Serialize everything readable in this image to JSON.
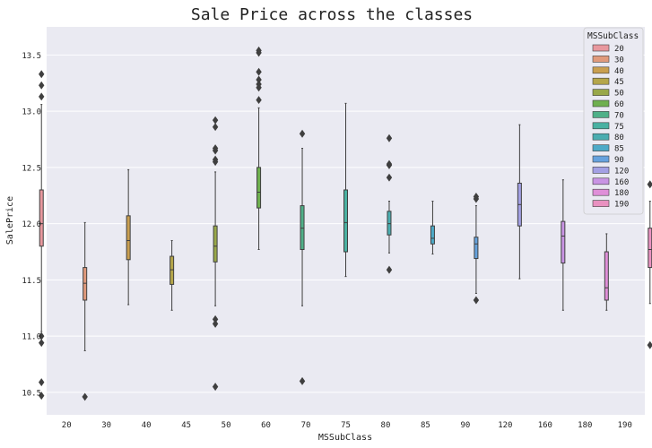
{
  "chart_data": {
    "type": "box",
    "title": "Sale Price across the classes",
    "xlabel": "MSSubClass",
    "ylabel": "SalePrice",
    "ylim": [
      10.3,
      13.75
    ],
    "yticks": [
      10.5,
      11.0,
      11.5,
      12.0,
      12.5,
      13.0,
      13.5
    ],
    "ytick_labels": [
      "10.5",
      "11.0",
      "11.5",
      "12.0",
      "12.5",
      "13.0",
      "13.5"
    ],
    "categories": [
      "20",
      "30",
      "40",
      "45",
      "50",
      "60",
      "70",
      "75",
      "80",
      "85",
      "90",
      "120",
      "160",
      "180",
      "190"
    ],
    "grid": true,
    "legend": {
      "title": "MSSubClass",
      "placement": "top-right",
      "entries": [
        "20",
        "30",
        "40",
        "45",
        "50",
        "60",
        "70",
        "75",
        "80",
        "85",
        "90",
        "120",
        "160",
        "180",
        "190"
      ]
    },
    "series": [
      {
        "name": "20",
        "color": "#e8989e",
        "q1": 11.8,
        "median": 12.0,
        "q3": 12.3,
        "whisker_low": 11.04,
        "whisker_high": 13.06,
        "outliers": [
          13.33,
          13.23,
          13.13,
          11.0,
          10.94,
          10.59,
          10.47
        ]
      },
      {
        "name": "30",
        "color": "#e09a7c",
        "q1": 11.32,
        "median": 11.47,
        "q3": 11.61,
        "whisker_low": 10.87,
        "whisker_high": 12.01,
        "outliers": [
          10.46
        ]
      },
      {
        "name": "40",
        "color": "#c99f50",
        "q1": 11.68,
        "median": 11.85,
        "q3": 12.07,
        "whisker_low": 11.28,
        "whisker_high": 12.48,
        "outliers": []
      },
      {
        "name": "45",
        "color": "#b5a64a",
        "q1": 11.46,
        "median": 11.59,
        "q3": 11.71,
        "whisker_low": 11.23,
        "whisker_high": 11.85,
        "outliers": []
      },
      {
        "name": "50",
        "color": "#99a84a",
        "q1": 11.66,
        "median": 11.8,
        "q3": 11.98,
        "whisker_low": 11.27,
        "whisker_high": 12.46,
        "outliers": [
          12.92,
          12.86,
          12.67,
          12.65,
          12.57,
          12.55,
          11.15,
          11.11,
          10.55
        ]
      },
      {
        "name": "60",
        "color": "#6fb04f",
        "q1": 12.14,
        "median": 12.28,
        "q3": 12.5,
        "whisker_low": 11.77,
        "whisker_high": 13.03,
        "outliers": [
          13.54,
          13.52,
          13.35,
          13.28,
          13.24,
          13.21,
          13.1
        ]
      },
      {
        "name": "70",
        "color": "#4fb088",
        "q1": 11.77,
        "median": 11.96,
        "q3": 12.16,
        "whisker_low": 11.27,
        "whisker_high": 12.67,
        "outliers": [
          12.8,
          10.6
        ]
      },
      {
        "name": "75",
        "color": "#4ab1a2",
        "q1": 11.75,
        "median": 12.01,
        "q3": 12.3,
        "whisker_low": 11.53,
        "whisker_high": 13.07,
        "outliers": []
      },
      {
        "name": "80",
        "color": "#4badb0",
        "q1": 11.9,
        "median": 12.0,
        "q3": 12.11,
        "whisker_low": 11.74,
        "whisker_high": 12.2,
        "outliers": [
          12.76,
          12.53,
          12.52,
          12.41,
          11.59
        ]
      },
      {
        "name": "85",
        "color": "#4eaac7",
        "q1": 11.82,
        "median": 11.87,
        "q3": 11.98,
        "whisker_low": 11.73,
        "whisker_high": 12.2,
        "outliers": []
      },
      {
        "name": "90",
        "color": "#66a2dd",
        "q1": 11.69,
        "median": 11.82,
        "q3": 11.88,
        "whisker_low": 11.38,
        "whisker_high": 12.16,
        "outliers": [
          12.24,
          12.22,
          11.32
        ]
      },
      {
        "name": "120",
        "color": "#a3a0e4",
        "q1": 11.98,
        "median": 12.17,
        "q3": 12.36,
        "whisker_low": 11.51,
        "whisker_high": 12.88,
        "outliers": []
      },
      {
        "name": "160",
        "color": "#c994e4",
        "q1": 11.65,
        "median": 11.89,
        "q3": 12.02,
        "whisker_low": 11.23,
        "whisker_high": 12.39,
        "outliers": []
      },
      {
        "name": "180",
        "color": "#df8fd8",
        "q1": 11.32,
        "median": 11.43,
        "q3": 11.75,
        "whisker_low": 11.23,
        "whisker_high": 11.91,
        "outliers": []
      },
      {
        "name": "190",
        "color": "#e991c0",
        "q1": 11.61,
        "median": 11.77,
        "q3": 11.96,
        "whisker_low": 11.29,
        "whisker_high": 12.2,
        "outliers": [
          12.35,
          10.92
        ]
      }
    ]
  }
}
